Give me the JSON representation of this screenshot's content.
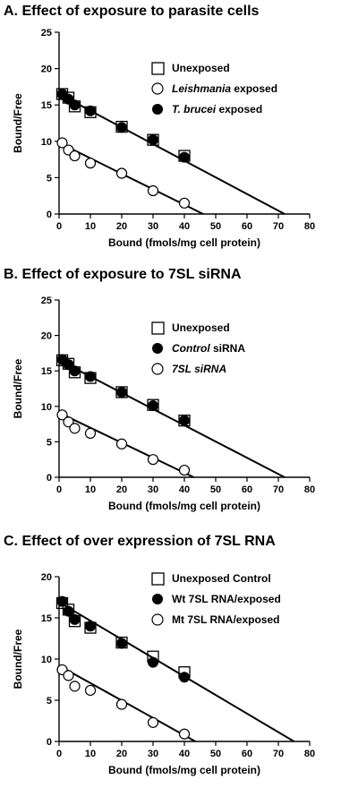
{
  "chart_data": [
    {
      "type": "scatter",
      "title": "A. Effect of exposure to parasite cells",
      "xlabel": "Bound (fmols/mg cell protein)",
      "ylabel": "Bound/Free",
      "xlim": [
        0,
        80
      ],
      "ylim": [
        0,
        25
      ],
      "xticks": [
        "0",
        "10",
        "20",
        "30",
        "40",
        "50",
        "60",
        "70",
        "80"
      ],
      "yticks": [
        "0",
        "5",
        "10",
        "15",
        "20",
        "25"
      ],
      "xtick_values": [
        0,
        10,
        20,
        30,
        40,
        50,
        60,
        70,
        80
      ],
      "ytick_values": [
        0,
        5,
        10,
        15,
        20,
        25
      ],
      "legend_position": "top-right",
      "series": [
        {
          "name": "Unexposed",
          "marker": "open-square",
          "x": [
            1,
            3,
            5,
            10,
            20,
            30,
            40
          ],
          "y": [
            16.5,
            16,
            14.8,
            14,
            12,
            10.2,
            8
          ]
        },
        {
          "name_prefix": "",
          "name_italic": "Leishmania",
          "name_suffix": " exposed",
          "marker": "open-circle",
          "x": [
            1,
            3,
            5,
            10,
            20,
            30,
            40
          ],
          "y": [
            9.8,
            8.8,
            8,
            7,
            5.6,
            3.2,
            1.5
          ]
        },
        {
          "name_prefix": "",
          "name_italic": "T. brucei",
          "name_suffix": " exposed",
          "marker": "filled-circle",
          "x": [
            1,
            3,
            5,
            10,
            20,
            30,
            40
          ],
          "y": [
            16.5,
            15.8,
            15,
            14.2,
            11.9,
            10.2,
            7.8
          ]
        }
      ],
      "fit_lines": [
        {
          "x": [
            0,
            72
          ],
          "y": [
            16.5,
            0
          ]
        },
        {
          "x": [
            0,
            46
          ],
          "y": [
            9.8,
            0
          ]
        }
      ]
    },
    {
      "type": "scatter",
      "title": "B. Effect of exposure to 7SL siRNA",
      "xlabel": "Bound (fmols/mg cell protein)",
      "ylabel": "Bound/Free",
      "xlim": [
        0,
        80
      ],
      "ylim": [
        0,
        25
      ],
      "xticks": [
        "0",
        "10",
        "20",
        "30",
        "40",
        "50",
        "60",
        "70",
        "80"
      ],
      "yticks": [
        "0",
        "5",
        "10",
        "15",
        "20",
        "25"
      ],
      "xtick_values": [
        0,
        10,
        20,
        30,
        40,
        50,
        60,
        70,
        80
      ],
      "ytick_values": [
        0,
        5,
        10,
        15,
        20,
        25
      ],
      "legend_position": "top-right",
      "series": [
        {
          "name": "Unexposed",
          "marker": "open-square",
          "x": [
            1,
            3,
            5,
            10,
            20,
            30,
            40
          ],
          "y": [
            16.5,
            16,
            14.8,
            14,
            12,
            10.2,
            8
          ]
        },
        {
          "name_prefix": "",
          "name_italic": "Control",
          "name_suffix": " siRNA",
          "marker": "filled-circle",
          "x": [
            1,
            3,
            5,
            10,
            20,
            30,
            40
          ],
          "y": [
            16.6,
            15.9,
            15,
            14.2,
            12,
            10.1,
            8
          ]
        },
        {
          "name_prefix": "",
          "name_italic": "7SL siRNA",
          "name_suffix": "",
          "marker": "open-circle",
          "x": [
            1,
            3,
            5,
            10,
            20,
            30,
            40
          ],
          "y": [
            8.8,
            7.8,
            6.9,
            6.2,
            4.7,
            2.5,
            1
          ]
        }
      ],
      "fit_lines": [
        {
          "x": [
            0,
            72
          ],
          "y": [
            16.5,
            0
          ]
        },
        {
          "x": [
            0,
            43
          ],
          "y": [
            9.1,
            0
          ]
        }
      ]
    },
    {
      "type": "scatter",
      "title": "C. Effect of over expression of 7SL RNA",
      "xlabel": "Bound (fmols/mg cell protein)",
      "ylabel": "Bound/Free",
      "xlim": [
        0,
        80
      ],
      "ylim": [
        0,
        20
      ],
      "xticks": [
        "0",
        "10",
        "20",
        "30",
        "40",
        "50",
        "60",
        "70",
        "80"
      ],
      "yticks": [
        "0",
        "5",
        "10",
        "15",
        "20"
      ],
      "xtick_values": [
        0,
        10,
        20,
        30,
        40,
        50,
        60,
        70,
        80
      ],
      "ytick_values": [
        0,
        5,
        10,
        15,
        20
      ],
      "legend_position": "top-right",
      "series": [
        {
          "name": "Unexposed Control",
          "marker": "open-square",
          "x": [
            1,
            3,
            5,
            10,
            20,
            30,
            40
          ],
          "y": [
            16.8,
            16,
            14.6,
            13.8,
            12,
            10.3,
            8.4
          ]
        },
        {
          "name": "Wt 7SL RNA/exposed",
          "marker": "filled-circle",
          "x": [
            1,
            3,
            5,
            10,
            20,
            30,
            40
          ],
          "y": [
            17,
            15.8,
            14.8,
            14,
            11.9,
            9.6,
            7.8
          ]
        },
        {
          "name": "Mt 7SL RNA/exposed",
          "marker": "open-circle",
          "x": [
            1,
            3,
            5,
            10,
            20,
            30,
            40
          ],
          "y": [
            8.7,
            8,
            6.7,
            6.2,
            4.5,
            2.3,
            0.9
          ]
        }
      ],
      "fit_lines": [
        {
          "x": [
            0,
            75
          ],
          "y": [
            16.9,
            0
          ]
        },
        {
          "x": [
            0,
            43.5
          ],
          "y": [
            9.2,
            0
          ]
        }
      ]
    }
  ]
}
